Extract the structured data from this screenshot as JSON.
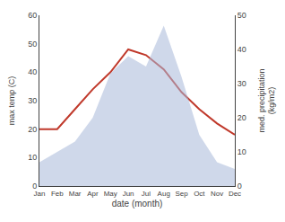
{
  "chart_data": {
    "type": "line",
    "categories": [
      "Jan",
      "Feb",
      "Mar",
      "Apr",
      "May",
      "Jun",
      "Jul",
      "Aug",
      "Sep",
      "Oct",
      "Nov",
      "Dec"
    ],
    "xlabel": "date (month)",
    "ylabel": "max temp (C)",
    "y2label": "med. precipitation\n(kg/m2)",
    "series": [
      {
        "type": "area",
        "axis": "y2",
        "color": "#a8b8d8",
        "values": [
          7,
          10,
          13,
          20,
          33,
          38,
          35,
          47,
          32,
          15,
          7,
          5
        ]
      },
      {
        "type": "line",
        "color": "#c0392b",
        "values": [
          20,
          20,
          27,
          34,
          40,
          48,
          46,
          41,
          33,
          27,
          22,
          18
        ]
      }
    ],
    "ylim": [
      0,
      60
    ],
    "yticks": [
      0,
      10,
      20,
      30,
      40,
      50,
      60
    ],
    "y2lim": [
      0,
      50
    ],
    "y2ticks": [
      0,
      10,
      20,
      30,
      40,
      50
    ],
    "grid": false
  }
}
